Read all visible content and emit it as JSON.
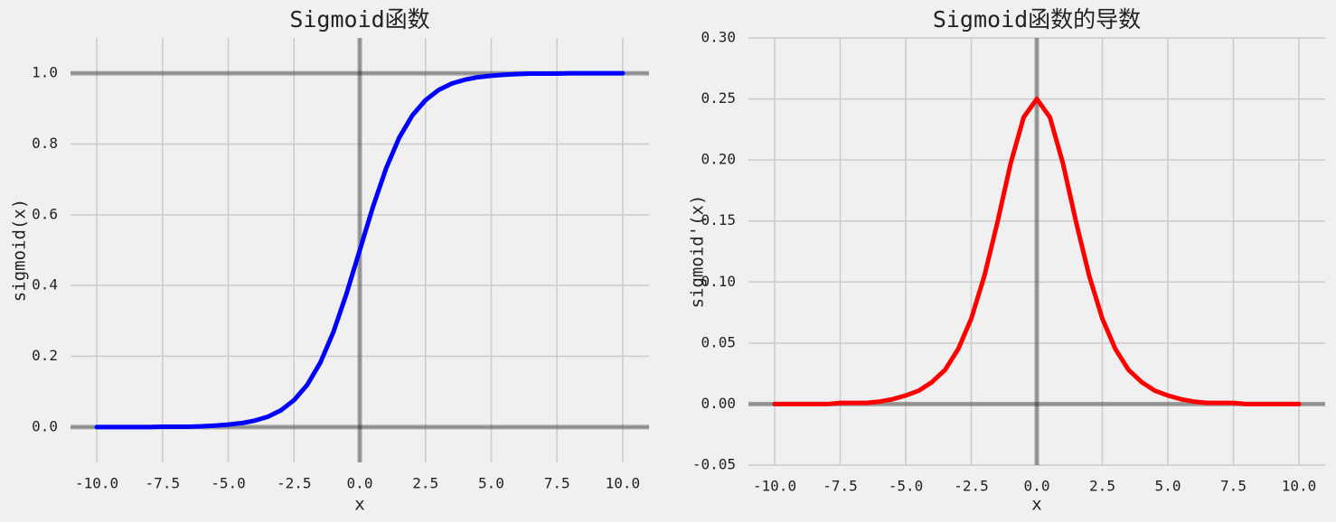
{
  "chart_data": [
    {
      "type": "line",
      "title": "Sigmoid函数",
      "xlabel": "x",
      "ylabel": "sigmoid(x)",
      "x": [
        -10,
        -9.5,
        -9,
        -8.5,
        -8,
        -7.5,
        -7,
        -6.5,
        -6,
        -5.5,
        -5,
        -4.5,
        -4,
        -3.5,
        -3,
        -2.5,
        -2,
        -1.5,
        -1,
        -0.5,
        0,
        0.5,
        1,
        1.5,
        2,
        2.5,
        3,
        3.5,
        4,
        4.5,
        5,
        5.5,
        6,
        6.5,
        7,
        7.5,
        8,
        8.5,
        9,
        9.5,
        10
      ],
      "series": [
        {
          "color": "#0000ff",
          "values": [
            0,
            0,
            0,
            0,
            0,
            0.001,
            0.001,
            0.001,
            0.002,
            0.004,
            0.007,
            0.011,
            0.018,
            0.029,
            0.047,
            0.076,
            0.119,
            0.182,
            0.269,
            0.378,
            0.5,
            0.622,
            0.731,
            0.818,
            0.881,
            0.924,
            0.953,
            0.971,
            0.982,
            0.989,
            0.993,
            0.996,
            0.998,
            0.999,
            0.999,
            0.999,
            1,
            1,
            1,
            1,
            1
          ]
        }
      ],
      "xlim": [
        -11,
        11
      ],
      "ylim": [
        -0.1,
        1.1
      ],
      "xticks": [
        {
          "value": -10,
          "label": "-10.0"
        },
        -7.5,
        {
          "value": -5,
          "label": "-5.0"
        },
        -2.5,
        {
          "value": 0,
          "label": "0.0"
        },
        2.5,
        {
          "value": 5,
          "label": "5.0"
        },
        7.5,
        {
          "value": 10,
          "label": "10.0"
        }
      ],
      "yticks": [
        {
          "value": 0,
          "label": "0.0"
        },
        0.2,
        0.4,
        0.6,
        0.8,
        {
          "value": 1,
          "label": "1.0"
        }
      ],
      "hlines": [
        0,
        1
      ],
      "vlines": [
        0
      ],
      "grid": true
    },
    {
      "type": "line",
      "title": "Sigmoid函数的导数",
      "xlabel": "x",
      "ylabel": "sigmoid'(x)",
      "x": [
        -10,
        -9.5,
        -9,
        -8.5,
        -8,
        -7.5,
        -7,
        -6.5,
        -6,
        -5.5,
        -5,
        -4.5,
        -4,
        -3.5,
        -3,
        -2.5,
        -2,
        -1.5,
        -1,
        -0.5,
        0,
        0.5,
        1,
        1.5,
        2,
        2.5,
        3,
        3.5,
        4,
        4.5,
        5,
        5.5,
        6,
        6.5,
        7,
        7.5,
        8,
        8.5,
        9,
        9.5,
        10
      ],
      "series": [
        {
          "color": "#ff0000",
          "values": [
            0,
            0,
            0,
            0,
            0,
            0.001,
            0.001,
            0.001,
            0.002,
            0.004,
            0.007,
            0.011,
            0.018,
            0.028,
            0.045,
            0.07,
            0.105,
            0.149,
            0.197,
            0.235,
            0.25,
            0.235,
            0.197,
            0.149,
            0.105,
            0.07,
            0.045,
            0.028,
            0.018,
            0.011,
            0.007,
            0.004,
            0.002,
            0.001,
            0.001,
            0.001,
            0,
            0,
            0,
            0,
            0
          ]
        }
      ],
      "xlim": [
        -11,
        11
      ],
      "ylim": [
        -0.05,
        0.3
      ],
      "xticks": [
        {
          "value": -10,
          "label": "-10.0"
        },
        -7.5,
        {
          "value": -5,
          "label": "-5.0"
        },
        -2.5,
        {
          "value": 0,
          "label": "0.0"
        },
        2.5,
        {
          "value": 5,
          "label": "5.0"
        },
        7.5,
        {
          "value": 10,
          "label": "10.0"
        }
      ],
      "yticks": [
        -0.05,
        {
          "value": 0,
          "label": "0.00"
        },
        0.05,
        {
          "value": 0.1,
          "label": "0.10"
        },
        0.15,
        {
          "value": 0.2,
          "label": "0.20"
        },
        0.25,
        {
          "value": 0.3,
          "label": "0.30"
        }
      ],
      "hlines": [
        0
      ],
      "vlines": [
        0
      ],
      "grid": true
    }
  ]
}
